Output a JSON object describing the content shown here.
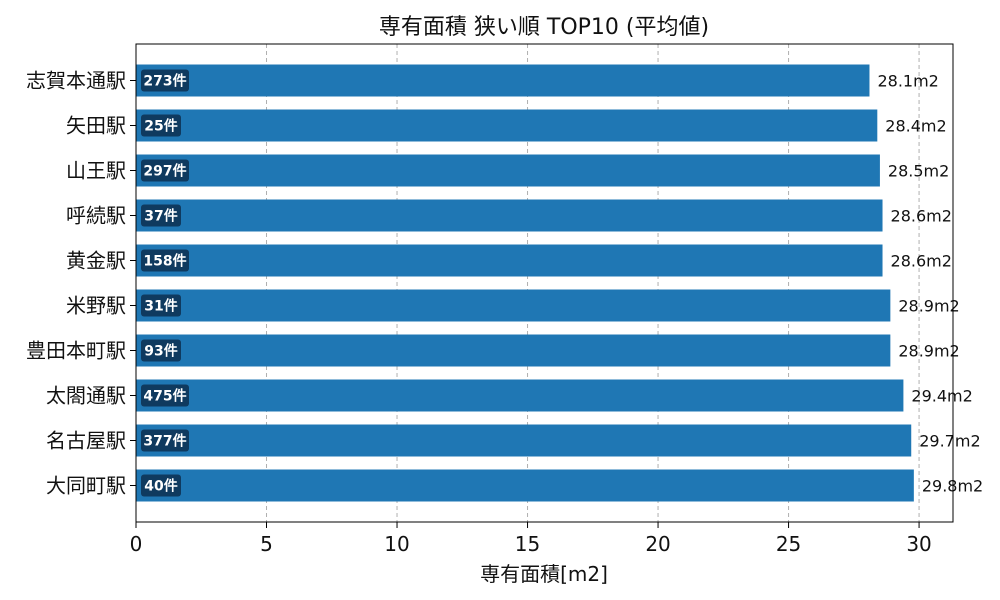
{
  "chart_data": {
    "type": "bar",
    "orientation": "horizontal",
    "title": "専有面積 狭い順 TOP10 (平均値)",
    "xlabel": "専有面積[m2]",
    "ylabel": "",
    "xlim": [
      0,
      31.3
    ],
    "xticks": [
      0,
      5,
      10,
      15,
      20,
      25,
      30
    ],
    "grid": "vertical dashed",
    "categories": [
      "志賀本通駅",
      "矢田駅",
      "山王駅",
      "呼続駅",
      "黄金駅",
      "米野駅",
      "豊田本町駅",
      "太閤通駅",
      "名古屋駅",
      "大同町駅"
    ],
    "values": [
      28.1,
      28.4,
      28.5,
      28.6,
      28.6,
      28.9,
      28.9,
      29.4,
      29.7,
      29.8
    ],
    "value_labels": [
      "28.1m2",
      "28.4m2",
      "28.5m2",
      "28.6m2",
      "28.6m2",
      "28.9m2",
      "28.9m2",
      "29.4m2",
      "29.7m2",
      "29.8m2"
    ],
    "count_labels": [
      "273件",
      "25件",
      "297件",
      "37件",
      "158件",
      "31件",
      "93件",
      "475件",
      "377件",
      "40件"
    ],
    "bar_color": "#1f77b4",
    "badge_color": "#0f3a5f"
  }
}
